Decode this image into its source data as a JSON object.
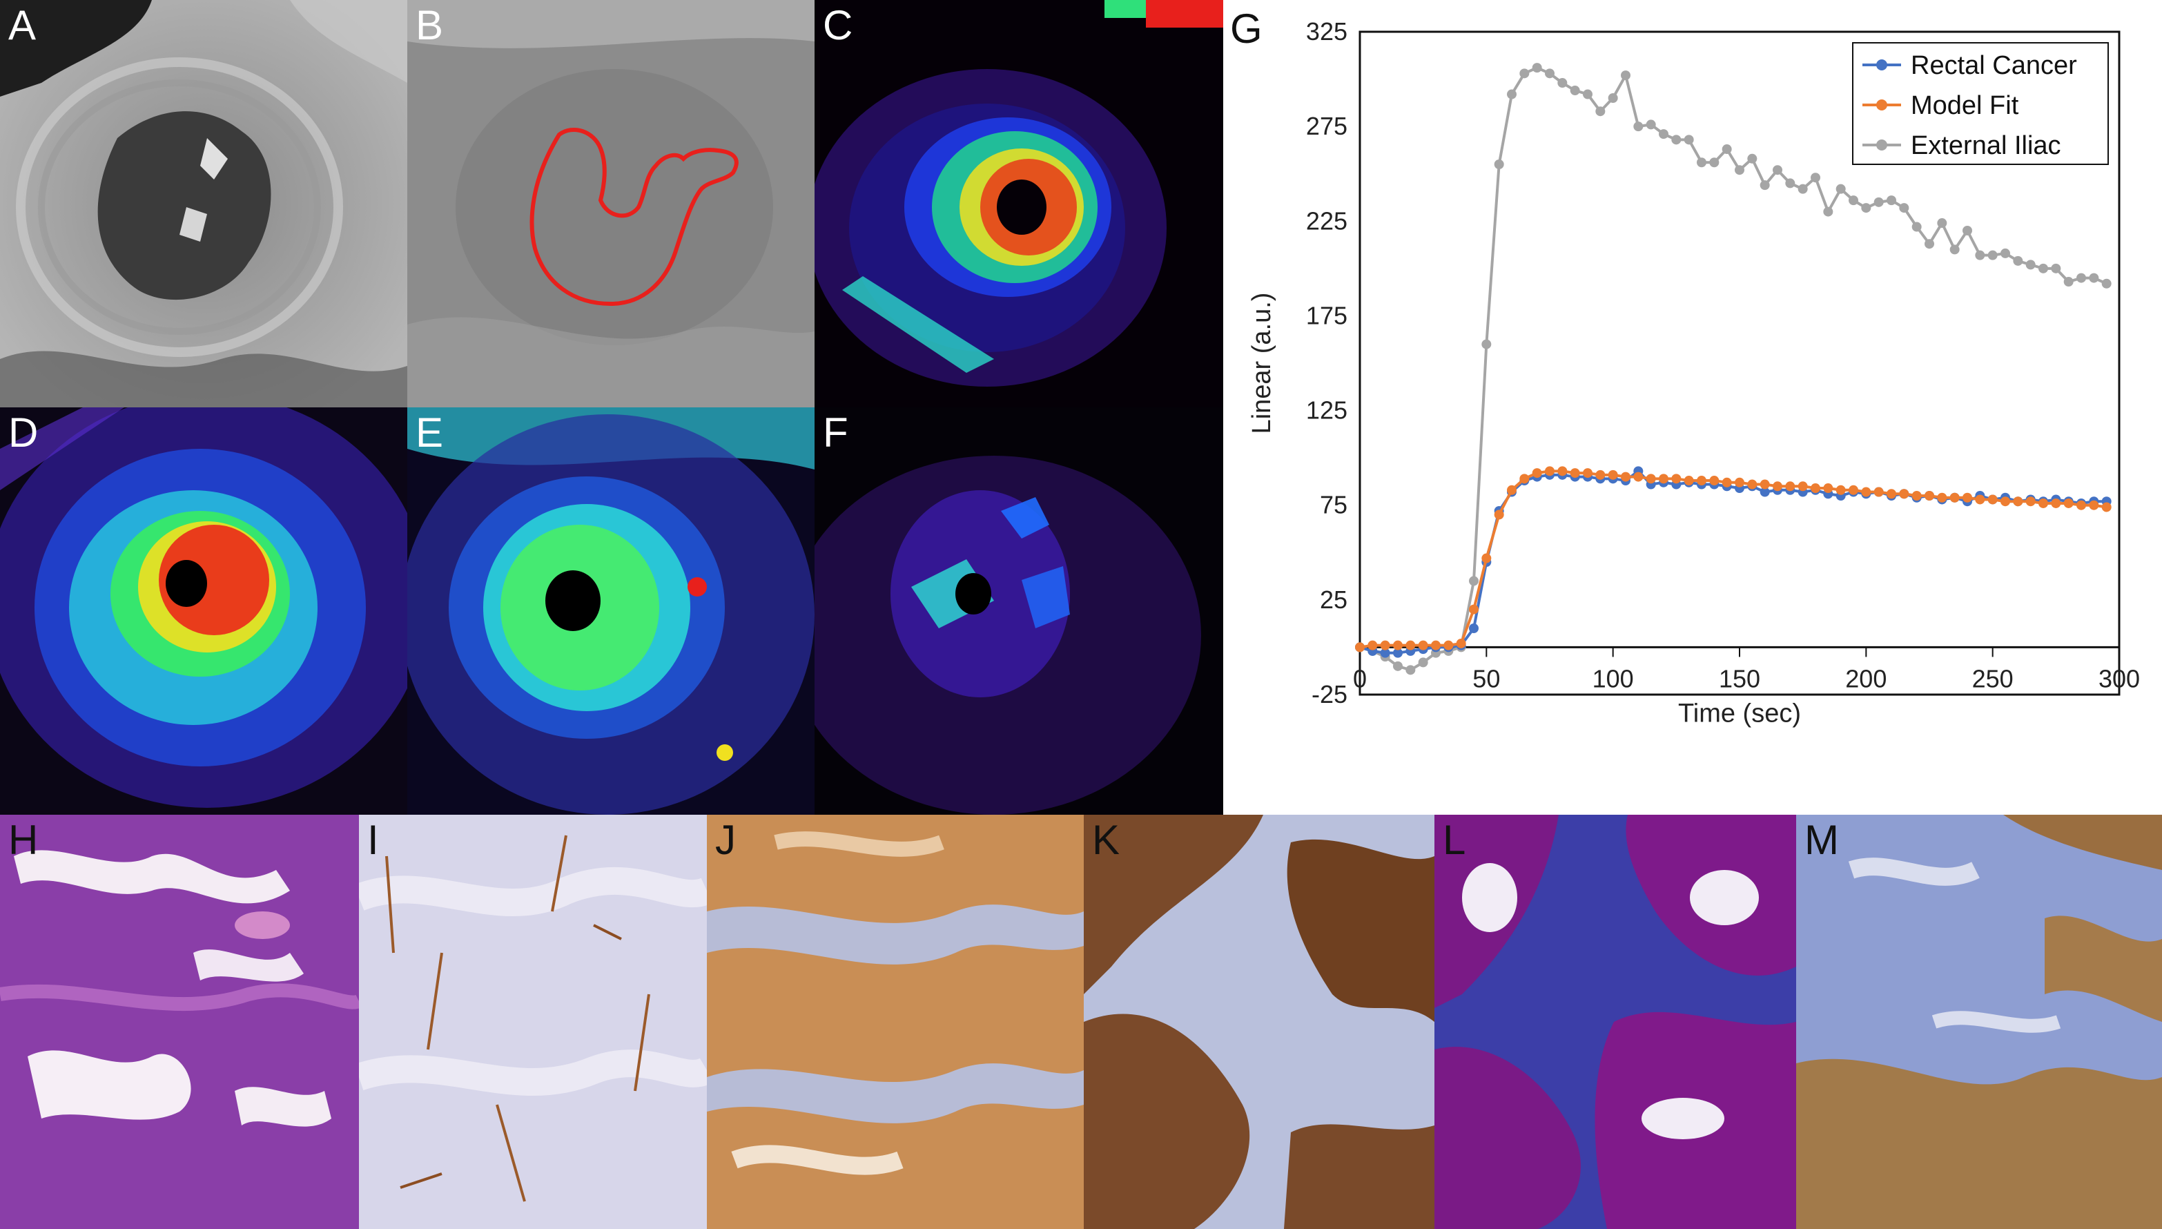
{
  "panels": [
    {
      "id": "A",
      "label": "A",
      "type": "mri-grayscale"
    },
    {
      "id": "B",
      "label": "B",
      "type": "mri-grayscale-roi"
    },
    {
      "id": "C",
      "label": "C",
      "type": "parametric-map"
    },
    {
      "id": "D",
      "label": "D",
      "type": "parametric-map"
    },
    {
      "id": "E",
      "label": "E",
      "type": "parametric-map"
    },
    {
      "id": "F",
      "label": "F",
      "type": "parametric-map"
    },
    {
      "id": "H",
      "label": "H",
      "type": "histology-he"
    },
    {
      "id": "I",
      "label": "I",
      "type": "histology-ihc-light"
    },
    {
      "id": "J",
      "label": "J",
      "type": "histology-ihc-brown"
    },
    {
      "id": "K",
      "label": "K",
      "type": "histology-ihc-nuclear"
    },
    {
      "id": "L",
      "label": "L",
      "type": "histology-trichrome"
    },
    {
      "id": "M",
      "label": "M",
      "type": "histology-ihc-stroma"
    }
  ],
  "colors": {
    "rectal": "#4472c4",
    "model": "#ed7d31",
    "iliac": "#a5a5a5",
    "roi": "#e8201c"
  },
  "chart_label": "G",
  "chart_data": {
    "type": "line",
    "title": "",
    "xlabel": "Time (sec)",
    "ylabel": "Linear (a.u.)",
    "xlim": [
      0,
      300
    ],
    "ylim": [
      -25,
      325
    ],
    "xticks": [
      "0",
      "50",
      "100",
      "150",
      "200",
      "250",
      "300"
    ],
    "yticks": [
      "325",
      "275",
      "225",
      "175",
      "125",
      "75",
      "25",
      "-25"
    ],
    "xtick_values": [
      0,
      50,
      100,
      150,
      200,
      250,
      300
    ],
    "ytick_values": [
      325,
      275,
      225,
      175,
      125,
      75,
      25,
      -25
    ],
    "legend_position": "top-right",
    "series": [
      {
        "name": "Rectal Cancer",
        "color": "#4472c4",
        "x": [
          0,
          5,
          10,
          15,
          20,
          25,
          30,
          35,
          40,
          45,
          50,
          55,
          60,
          65,
          70,
          75,
          80,
          85,
          90,
          95,
          100,
          105,
          110,
          115,
          120,
          125,
          130,
          135,
          140,
          145,
          150,
          155,
          160,
          165,
          170,
          175,
          180,
          185,
          190,
          195,
          200,
          205,
          210,
          215,
          220,
          225,
          230,
          235,
          240,
          245,
          250,
          255,
          260,
          265,
          270,
          275,
          280,
          285,
          290,
          295
        ],
        "y": [
          0,
          -2,
          -3,
          -3,
          -2,
          -1,
          0,
          0,
          1,
          10,
          45,
          72,
          82,
          88,
          90,
          91,
          91,
          90,
          90,
          89,
          89,
          88,
          93,
          86,
          87,
          86,
          87,
          86,
          86,
          85,
          84,
          85,
          82,
          83,
          83,
          82,
          83,
          81,
          80,
          82,
          81,
          82,
          80,
          81,
          79,
          80,
          78,
          79,
          77,
          80,
          78,
          79,
          77,
          78,
          77,
          78,
          77,
          76,
          77,
          77
        ]
      },
      {
        "name": "Model Fit",
        "color": "#ed7d31",
        "x": [
          0,
          5,
          10,
          15,
          20,
          25,
          30,
          35,
          40,
          45,
          50,
          55,
          60,
          65,
          70,
          75,
          80,
          85,
          90,
          95,
          100,
          105,
          110,
          115,
          120,
          125,
          130,
          135,
          140,
          145,
          150,
          155,
          160,
          165,
          170,
          175,
          180,
          185,
          190,
          195,
          200,
          205,
          210,
          215,
          220,
          225,
          230,
          235,
          240,
          245,
          250,
          255,
          260,
          265,
          270,
          275,
          280,
          285,
          290,
          295
        ],
        "y": [
          0,
          1,
          1,
          1,
          1,
          1,
          1,
          1,
          2,
          20,
          47,
          70,
          83,
          89,
          92,
          93,
          93,
          92,
          92,
          91,
          91,
          90,
          90,
          89,
          89,
          89,
          88,
          88,
          88,
          87,
          87,
          86,
          86,
          85,
          85,
          85,
          84,
          84,
          83,
          83,
          82,
          82,
          81,
          81,
          80,
          80,
          79,
          79,
          79,
          78,
          78,
          77,
          77,
          77,
          76,
          76,
          76,
          75,
          75,
          74
        ]
      },
      {
        "name": "External Iliac",
        "color": "#a5a5a5",
        "x": [
          0,
          5,
          10,
          15,
          20,
          25,
          30,
          35,
          40,
          45,
          50,
          55,
          60,
          65,
          70,
          75,
          80,
          85,
          90,
          95,
          100,
          105,
          110,
          115,
          120,
          125,
          130,
          135,
          140,
          145,
          150,
          155,
          160,
          165,
          170,
          175,
          180,
          185,
          190,
          195,
          200,
          205,
          210,
          215,
          220,
          225,
          230,
          235,
          240,
          245,
          250,
          255,
          260,
          265,
          270,
          275,
          280,
          285,
          290,
          295
        ],
        "y": [
          0,
          -2,
          -5,
          -10,
          -12,
          -8,
          -3,
          -2,
          0,
          35,
          160,
          255,
          292,
          303,
          306,
          303,
          298,
          294,
          292,
          283,
          290,
          302,
          275,
          276,
          271,
          268,
          268,
          256,
          256,
          263,
          252,
          258,
          244,
          252,
          245,
          242,
          248,
          230,
          242,
          236,
          232,
          235,
          236,
          232,
          222,
          213,
          224,
          210,
          220,
          207,
          207,
          208,
          204,
          202,
          200,
          200,
          193,
          195,
          195,
          192
        ]
      }
    ]
  }
}
